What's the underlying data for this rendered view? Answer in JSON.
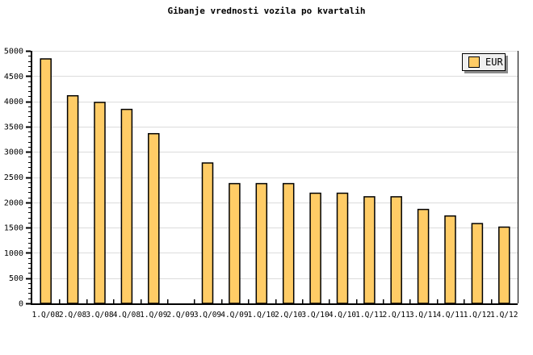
{
  "chart_data": {
    "type": "bar",
    "title": "Gibanje vrednosti vozila po kvartalih",
    "xlabel": "",
    "ylabel": "",
    "categories": [
      "1.Q/08",
      "2.Q/08",
      "3.Q/08",
      "4.Q/08",
      "1.Q/09",
      "2.Q/09",
      "3.Q/09",
      "4.Q/09",
      "1.Q/10",
      "2.Q/10",
      "3.Q/10",
      "4.Q/10",
      "1.Q/11",
      "2.Q/11",
      "3.Q/11",
      "4.Q/11",
      "1.Q/12",
      "1.Q/12"
    ],
    "series": [
      {
        "name": "EUR",
        "values": [
          4840,
          4110,
          3980,
          3840,
          3360,
          null,
          2780,
          2370,
          2370,
          2370,
          2180,
          2180,
          2110,
          2110,
          1860,
          1730,
          1580,
          1510
        ]
      }
    ],
    "ylim": [
      0,
      5000
    ],
    "ytick_major": 500,
    "ytick_minor": 100,
    "grid": "horizontal",
    "legend": {
      "label": "EUR",
      "position": "top-right"
    },
    "colors": {
      "bar_fill": "#FFCC66",
      "bar_border": "#000000",
      "grid": "#DCDCDC",
      "axis": "#000000",
      "background": "#FFFFFF",
      "legend_bg": "#F0F0F0",
      "legend_shadow": "#8C8C8C",
      "text": "#000000"
    }
  }
}
